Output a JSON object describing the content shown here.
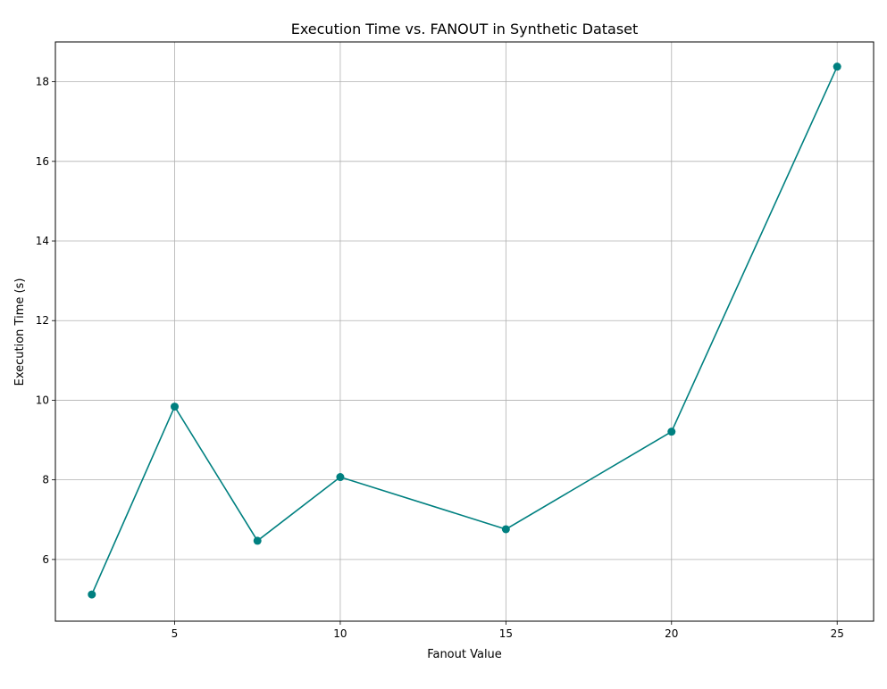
{
  "chart_data": {
    "type": "line",
    "title": "Execution Time vs. FANOUT in Synthetic Dataset",
    "xlabel": "Fanout Value",
    "ylabel": "Execution Time (s)",
    "x": [
      2.5,
      5,
      7.5,
      10,
      15,
      20,
      25
    ],
    "series": [
      {
        "values": [
          5.12,
          9.84,
          6.47,
          8.07,
          6.76,
          9.21,
          18.38
        ]
      }
    ],
    "xlim": [
      1.4,
      26.1
    ],
    "ylim": [
      4.45,
      19.0
    ],
    "xticks": [
      5,
      10,
      15,
      20,
      25
    ],
    "yticks": [
      6,
      8,
      10,
      12,
      14,
      16,
      18
    ],
    "grid": true,
    "marker": "circle",
    "color": "#008080"
  }
}
